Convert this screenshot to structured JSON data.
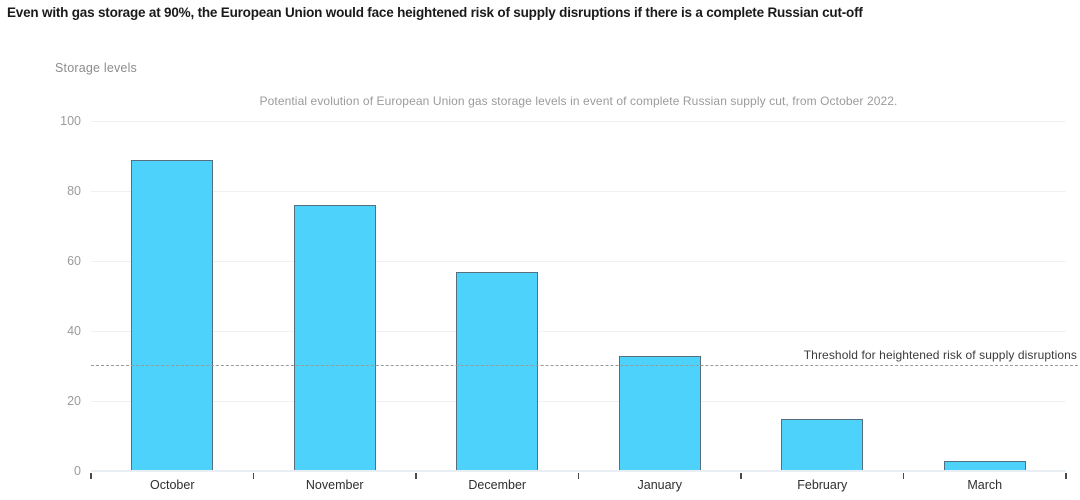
{
  "chart_data": {
    "type": "bar",
    "title": "Even with gas storage at 90%, the European Union would face heightened risk of supply disruptions if there is a complete Russian cut-off",
    "subtitle": "Potential evolution of European Union gas storage levels in event of complete Russian supply cut, from October 2022.",
    "ylabel": "Storage levels",
    "xlabel": "",
    "categories": [
      "October",
      "November",
      "December",
      "January",
      "February",
      "March"
    ],
    "values": [
      89,
      76,
      57,
      33,
      15,
      3
    ],
    "ylim": [
      0,
      100
    ],
    "yticks": [
      0,
      20,
      40,
      60,
      80,
      100
    ],
    "grid": true,
    "legend": false,
    "threshold": {
      "value": 30,
      "label": "Threshold for heightened risk of supply disruptions"
    },
    "colors": {
      "bar_fill": "#4dd2fb",
      "bar_border": "#54707e",
      "gridline": "#f0f0f0",
      "axis_line": "#e9eef4",
      "axis_tick": "#4a4a4a",
      "threshold_line": "#9a9a9a",
      "title_text": "#1a1a1a",
      "subtitle_text": "#9b9b9b",
      "ylabel_text": "#8d8d8d",
      "ytick_text": "#9b9b9b",
      "month_text": "#2e2e2e",
      "threshold_text": "#3b3b3b"
    }
  }
}
